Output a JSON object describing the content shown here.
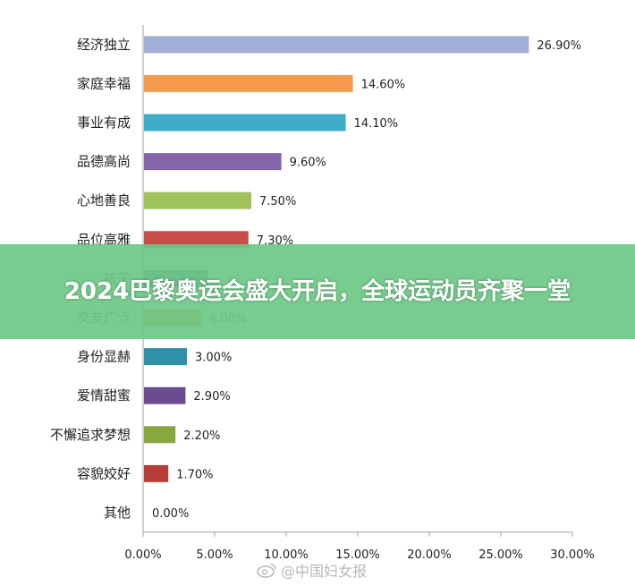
{
  "banner": {
    "title": "2024巴黎奥运会盛大开启，全球运动员齐聚一堂"
  },
  "watermark": {
    "text": "@中国妇女报"
  },
  "chart_data": {
    "type": "bar",
    "orientation": "horizontal",
    "categories": [
      "经济独立",
      "家庭幸福",
      "事业有成",
      "品德高尚",
      "心地善良",
      "品位高雅",
      "孩子",
      "交友广泛",
      "身份显赫",
      "爱情甜蜜",
      "不懈追求梦想",
      "容貌姣好",
      "其他"
    ],
    "values": [
      26.9,
      14.6,
      14.1,
      9.6,
      7.5,
      7.3,
      4.5,
      4.0,
      3.0,
      2.9,
      2.2,
      1.7,
      0.0
    ],
    "value_labels": [
      "26.90%",
      "14.60%",
      "14.10%",
      "9.60%",
      "7.50%",
      "7.30%",
      "",
      "4.00%",
      "3.00%",
      "2.90%",
      "2.20%",
      "1.70%",
      "0.00%"
    ],
    "colors": [
      "#a3afd6",
      "#f59a4c",
      "#3eaec8",
      "#8466a8",
      "#9fc25a",
      "#c84d4a",
      "#3f6fa9",
      "#e88b3a",
      "#2f90a8",
      "#6b4c8e",
      "#86a83e",
      "#b93d3a",
      "#4472c4"
    ],
    "xlim": [
      0,
      30
    ],
    "x_ticks": [
      "0.00%",
      "5.00%",
      "10.00%",
      "15.00%",
      "20.00%",
      "25.00%",
      "30.00%"
    ],
    "grid": false,
    "legend": false
  }
}
